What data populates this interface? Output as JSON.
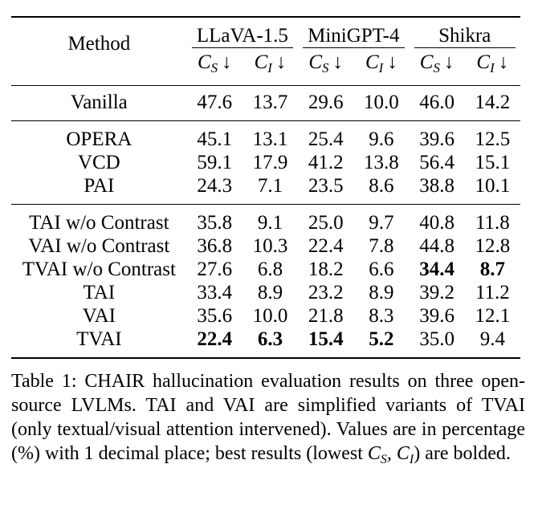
{
  "table": {
    "method_header": "Method",
    "groups": [
      {
        "name": "LLaVA-1.5",
        "metrics": [
          {
            "sym": "C",
            "sub": "S",
            "arrow": "↓"
          },
          {
            "sym": "C",
            "sub": "I",
            "arrow": "↓"
          }
        ]
      },
      {
        "name": "MiniGPT-4",
        "metrics": [
          {
            "sym": "C",
            "sub": "S",
            "arrow": "↓"
          },
          {
            "sym": "C",
            "sub": "I",
            "arrow": "↓"
          }
        ]
      },
      {
        "name": "Shikra",
        "metrics": [
          {
            "sym": "C",
            "sub": "S",
            "arrow": "↓"
          },
          {
            "sym": "C",
            "sub": "I",
            "arrow": "↓"
          }
        ]
      }
    ],
    "sections": [
      [
        {
          "method": "Vanilla",
          "values": [
            "47.6",
            "13.7",
            "29.6",
            "10.0",
            "46.0",
            "14.2"
          ],
          "bold": []
        }
      ],
      [
        {
          "method": "OPERA",
          "values": [
            "45.1",
            "13.1",
            "25.4",
            "9.6",
            "39.6",
            "12.5"
          ],
          "bold": []
        },
        {
          "method": "VCD",
          "values": [
            "59.1",
            "17.9",
            "41.2",
            "13.8",
            "56.4",
            "15.1"
          ],
          "bold": []
        },
        {
          "method": "PAI",
          "values": [
            "24.3",
            "7.1",
            "23.5",
            "8.6",
            "38.8",
            "10.1"
          ],
          "bold": []
        }
      ],
      [
        {
          "method": "TAI w/o Contrast",
          "values": [
            "35.8",
            "9.1",
            "25.0",
            "9.7",
            "40.8",
            "11.8"
          ],
          "bold": []
        },
        {
          "method": "VAI w/o Contrast",
          "values": [
            "36.8",
            "10.3",
            "22.4",
            "7.8",
            "44.8",
            "12.8"
          ],
          "bold": []
        },
        {
          "method": "TVAI w/o Contrast",
          "values": [
            "27.6",
            "6.8",
            "18.2",
            "6.6",
            "34.4",
            "8.7"
          ],
          "bold": [
            4,
            5
          ]
        },
        {
          "method": "TAI",
          "values": [
            "33.4",
            "8.9",
            "23.2",
            "8.9",
            "39.2",
            "11.2"
          ],
          "bold": []
        },
        {
          "method": "VAI",
          "values": [
            "35.6",
            "10.0",
            "21.8",
            "8.3",
            "39.6",
            "12.1"
          ],
          "bold": []
        },
        {
          "method": "TVAI",
          "values": [
            "22.4",
            "6.3",
            "15.4",
            "5.2",
            "35.0",
            "9.4"
          ],
          "bold": [
            0,
            1,
            2,
            3
          ]
        }
      ]
    ]
  },
  "caption": {
    "part1": "Table 1: CHAIR hallucination evaluation results on three open-source LVLMs. TAI and VAI are simplified variants of TVAI (only textual/visual attention intervened). Values are in percentage (%) with 1 decimal place; best results (lowest ",
    "math": "Cₛ, Cᵢ",
    "part2": ") are bolded."
  }
}
